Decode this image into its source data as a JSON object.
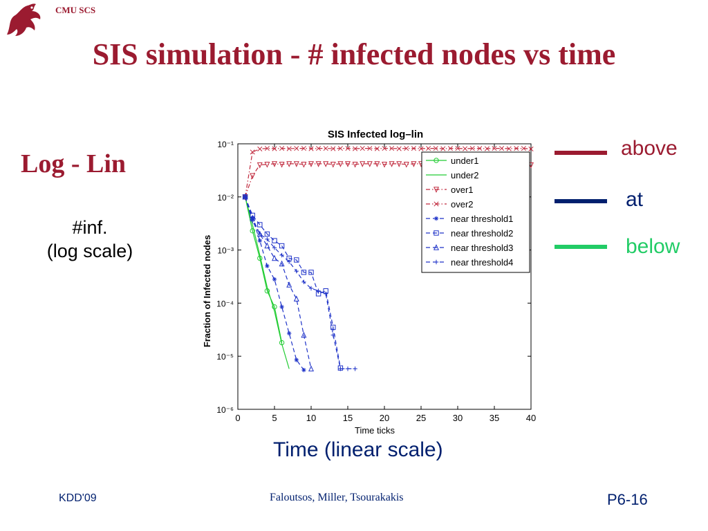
{
  "header": {
    "org": "CMU SCS",
    "logo": "griffin-logo"
  },
  "slide": {
    "title": "SIS simulation - # infected nodes vs time",
    "subtitle": "Log - Lin",
    "y_caption_line1": "#inf.",
    "y_caption_line2": "(log scale)",
    "x_caption": "Time (linear scale)"
  },
  "side_legend": [
    {
      "label": "above",
      "color": "#9b1b30"
    },
    {
      "label": "at",
      "color": "#001f6e"
    },
    {
      "label": "below",
      "color": "#22cc66"
    }
  ],
  "footer": {
    "left": "KDD'09",
    "middle": "Faloutsos, Miller, Tsourakakis",
    "right": "P6-16"
  },
  "chart_data": {
    "type": "line",
    "title": "SIS Infected log–lin",
    "xlabel": "Time ticks",
    "ylabel": "Fraction of Infected nodes",
    "xlim": [
      0,
      40
    ],
    "ylim": [
      1e-06,
      0.1
    ],
    "yscale": "log",
    "xticks": [
      0,
      5,
      10,
      15,
      20,
      25,
      30,
      35,
      40
    ],
    "ytick_labels": [
      "10⁻¹",
      "10⁻²",
      "10⁻³",
      "10⁻⁴",
      "10⁻⁵",
      "10⁻⁶"
    ],
    "grid": false,
    "legend_position": "top-right",
    "series": [
      {
        "name": "under1",
        "color": "#22cc33",
        "dash": "solid",
        "marker": "circle",
        "x": [
          1,
          2,
          3,
          4,
          5,
          6
        ],
        "y": [
          0.01,
          0.0023,
          0.0007,
          0.00017,
          8.5e-05,
          1.8e-05
        ]
      },
      {
        "name": "under2",
        "color": "#22cc33",
        "dash": "solid",
        "marker": "none",
        "x": [
          1,
          2,
          3,
          4,
          5,
          6,
          7
        ],
        "y": [
          0.01,
          0.003,
          0.0008,
          0.0002,
          7e-05,
          1.7e-05,
          5.8e-06
        ]
      },
      {
        "name": "over1",
        "color": "#c0283c",
        "dash": "dashdot",
        "marker": "triangle-down",
        "x": [
          1,
          2,
          3,
          4,
          5,
          6,
          7,
          8,
          9,
          10,
          11,
          12,
          13,
          14,
          15,
          16,
          17,
          18,
          19,
          20,
          21,
          22,
          23,
          24,
          25,
          26,
          27,
          28,
          29,
          30,
          31,
          32,
          33,
          34,
          35,
          36,
          37,
          38,
          39,
          40
        ],
        "y": [
          0.01,
          0.025,
          0.04,
          0.041,
          0.042,
          0.041,
          0.042,
          0.042,
          0.041,
          0.042,
          0.042,
          0.042,
          0.041,
          0.042,
          0.042,
          0.041,
          0.042,
          0.042,
          0.042,
          0.041,
          0.042,
          0.042,
          0.041,
          0.042,
          0.042,
          0.042,
          0.041,
          0.042,
          0.042,
          0.041,
          0.042,
          0.042,
          0.042,
          0.041,
          0.042,
          0.042,
          0.041,
          0.042,
          0.042,
          0.04
        ]
      },
      {
        "name": "over2",
        "color": "#c0283c",
        "dash": "dashdot",
        "marker": "x",
        "x": [
          1,
          2,
          3,
          4,
          5,
          6,
          7,
          8,
          9,
          10,
          11,
          12,
          13,
          14,
          15,
          16,
          17,
          18,
          19,
          20,
          21,
          22,
          23,
          24,
          25,
          26,
          27,
          28,
          29,
          30,
          31,
          32,
          33,
          34,
          35,
          36,
          37,
          38,
          39,
          40
        ],
        "y": [
          0.01,
          0.07,
          0.08,
          0.082,
          0.081,
          0.082,
          0.081,
          0.082,
          0.082,
          0.081,
          0.082,
          0.082,
          0.081,
          0.082,
          0.082,
          0.081,
          0.082,
          0.082,
          0.081,
          0.082,
          0.082,
          0.081,
          0.082,
          0.082,
          0.081,
          0.082,
          0.082,
          0.081,
          0.082,
          0.082,
          0.081,
          0.082,
          0.082,
          0.081,
          0.082,
          0.082,
          0.081,
          0.082,
          0.082,
          0.08
        ]
      },
      {
        "name": "near threshold1",
        "color": "#1e32c8",
        "dash": "dashed",
        "marker": "star",
        "x": [
          1,
          2,
          3,
          4,
          5,
          6,
          7,
          8,
          9
        ],
        "y": [
          0.01,
          0.004,
          0.0015,
          0.0005,
          0.00028,
          8.5e-05,
          2.7e-05,
          8.5e-06,
          5.5e-06
        ]
      },
      {
        "name": "near threshold2",
        "color": "#1e32c8",
        "dash": "dashed",
        "marker": "square",
        "x": [
          1,
          2,
          3,
          4,
          5,
          6,
          7,
          8,
          9,
          10,
          11,
          12,
          13,
          14
        ],
        "y": [
          0.01,
          0.0045,
          0.003,
          0.002,
          0.0015,
          0.0012,
          0.0007,
          0.00065,
          0.00038,
          0.00038,
          0.00015,
          0.00017,
          3.5e-05,
          6e-06
        ]
      },
      {
        "name": "near threshold3",
        "color": "#1e32c8",
        "dash": "dashed",
        "marker": "triangle-up",
        "x": [
          1,
          2,
          3,
          4,
          5,
          6,
          7,
          8,
          9,
          10
        ],
        "y": [
          0.01,
          0.004,
          0.002,
          0.0012,
          0.0007,
          0.00055,
          0.00022,
          0.00012,
          2.5e-05,
          5.8e-06
        ]
      },
      {
        "name": "near threshold4",
        "color": "#1e32c8",
        "dash": "dashed",
        "marker": "plus",
        "x": [
          1,
          2,
          3,
          4,
          5,
          6,
          7,
          8,
          9,
          10,
          11,
          12,
          13,
          14,
          15,
          16
        ],
        "y": [
          0.01,
          0.0035,
          0.002,
          0.0016,
          0.0011,
          0.0008,
          0.0006,
          0.0004,
          0.00025,
          0.00019,
          0.00017,
          0.00015,
          2.5e-05,
          5.8e-06,
          5.8e-06,
          5.8e-06
        ]
      }
    ]
  }
}
